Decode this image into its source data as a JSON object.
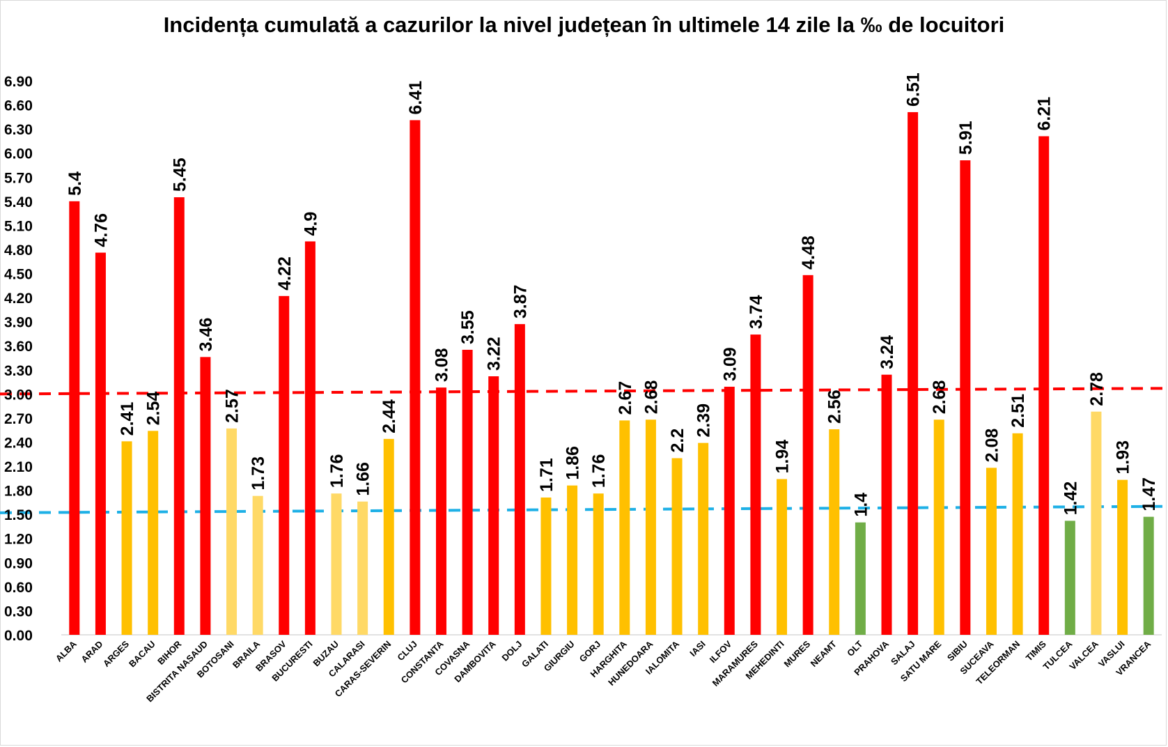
{
  "chart_data": {
    "type": "bar",
    "title": "Incidența cumulată a cazurilor la nivel județean în ultimele 14 zile la ‰ de locuitori",
    "xlabel": "",
    "ylabel": "",
    "ylim": [
      0,
      6.9
    ],
    "yticks": [
      "0.00",
      "0.30",
      "0.60",
      "0.90",
      "1.20",
      "1.50",
      "1.80",
      "2.10",
      "2.40",
      "2.70",
      "3.00",
      "3.30",
      "3.60",
      "3.90",
      "4.20",
      "4.50",
      "4.80",
      "5.10",
      "5.40",
      "5.70",
      "6.00",
      "6.30",
      "6.60",
      "6.90"
    ],
    "grid": false,
    "legend": "none",
    "categories": [
      "ALBA",
      "ARAD",
      "ARGES",
      "BACAU",
      "BIHOR",
      "BISTRITA NASAUD",
      "BOTOSANI",
      "BRAILA",
      "BRASOV",
      "BUCURESTI",
      "BUZAU",
      "CALARASI",
      "CARAS-SEVERIN",
      "CLUJ",
      "CONSTANTA",
      "COVASNA",
      "DAMBOVITA",
      "DOLJ",
      "GALATI",
      "GIURGIU",
      "GORJ",
      "HARGHITA",
      "HUNEDOARA",
      "IALOMITA",
      "IASI",
      "ILFOV",
      "MARAMURES",
      "MEHEDINTI",
      "MURES",
      "NEAMT",
      "OLT",
      "PRAHOVA",
      "SALAJ",
      "SATU MARE",
      "SIBIU",
      "SUCEAVA",
      "TELEORMAN",
      "TIMIS",
      "TULCEA",
      "VALCEA",
      "VASLUI",
      "VRANCEA"
    ],
    "values": [
      5.4,
      4.76,
      2.41,
      2.54,
      5.45,
      3.46,
      2.57,
      1.73,
      4.22,
      4.9,
      1.76,
      1.66,
      2.44,
      6.41,
      3.08,
      3.55,
      3.22,
      3.87,
      1.71,
      1.86,
      1.76,
      2.67,
      2.68,
      2.2,
      2.39,
      3.09,
      3.74,
      1.94,
      4.48,
      2.56,
      1.4,
      3.24,
      6.51,
      2.68,
      5.91,
      2.08,
      2.51,
      6.21,
      1.42,
      2.78,
      1.93,
      1.47
    ],
    "data_labels": [
      "5.4",
      "4.76",
      "2.41",
      "2.54",
      "5.45",
      "3.46",
      "2.57",
      "1.73",
      "4.22",
      "4.9",
      "1.76",
      "1.66",
      "2.44",
      "6.41",
      "3.08",
      "3.55",
      "3.22",
      "3.87",
      "1.71",
      "1.86",
      "1.76",
      "2.67",
      "2.68",
      "2.2",
      "2.39",
      "3.09",
      "3.74",
      "1.94",
      "4.48",
      "2.56",
      "1.4",
      "3.24",
      "6.51",
      "2.68",
      "5.91",
      "2.08",
      "2.51",
      "6.21",
      "1.42",
      "2.78",
      "1.93",
      "1.47"
    ],
    "bar_colors": [
      "#ff0000",
      "#ff0000",
      "#ffc000",
      "#ffc000",
      "#ff0000",
      "#ff0000",
      "#ffd966",
      "#ffd966",
      "#ff0000",
      "#ff0000",
      "#ffd966",
      "#ffd966",
      "#ffc000",
      "#ff0000",
      "#ff0000",
      "#ff0000",
      "#ff0000",
      "#ff0000",
      "#ffc000",
      "#ffc000",
      "#ffc000",
      "#ffc000",
      "#ffc000",
      "#ffc000",
      "#ffc000",
      "#ff0000",
      "#ff0000",
      "#ffc000",
      "#ff0000",
      "#ffc000",
      "#70ad47",
      "#ff0000",
      "#ff0000",
      "#ffc000",
      "#ff0000",
      "#ffc000",
      "#ffc000",
      "#ff0000",
      "#70ad47",
      "#ffd966",
      "#ffc000",
      "#70ad47"
    ],
    "reference_lines": [
      {
        "color": "#ff0000",
        "style": "dashed",
        "value_start": 3.0,
        "value_end": 3.07
      },
      {
        "color": "#1eb0e6",
        "style": "dashed",
        "value_start": 1.52,
        "value_end": 1.6
      }
    ]
  }
}
